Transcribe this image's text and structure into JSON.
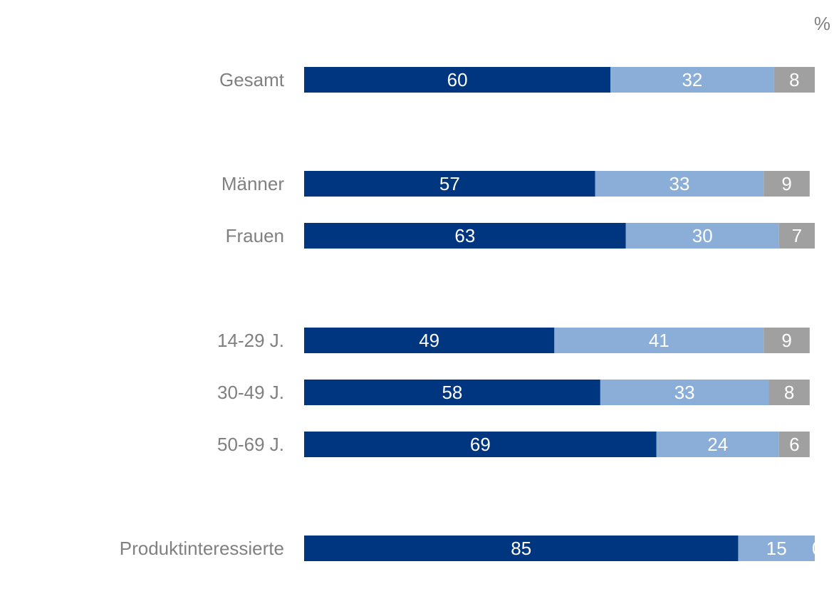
{
  "chart_data": {
    "type": "bar",
    "orientation": "horizontal",
    "stacked": true,
    "unit": "%",
    "categories": [
      "Gesamt",
      "Männer",
      "Frauen",
      "14-29 J.",
      "30-49 J.",
      "50-69 J.",
      "Produktinteressierte"
    ],
    "series": [
      {
        "values": [
          60,
          57,
          63,
          49,
          58,
          69,
          85
        ],
        "color": "#003580"
      },
      {
        "values": [
          32,
          33,
          30,
          41,
          33,
          24,
          15
        ],
        "color": "#8aaed8"
      },
      {
        "values": [
          8,
          9,
          7,
          9,
          8,
          6,
          0
        ],
        "color": "#a0a0a0"
      }
    ],
    "xlim": [
      0,
      100
    ],
    "grid": false,
    "legend": "none"
  },
  "colors": {
    "category_label": "#808080",
    "value_label": "#ffffff"
  }
}
